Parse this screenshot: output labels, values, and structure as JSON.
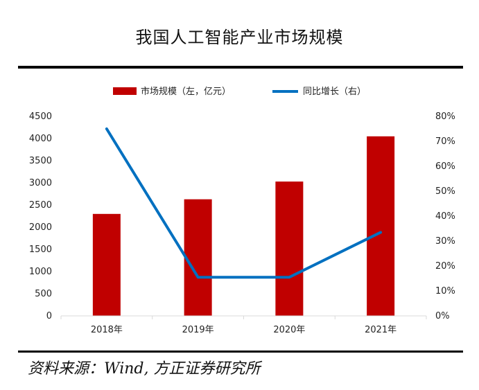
{
  "header": {
    "title": "我国人工智能产业市场规模"
  },
  "footer": {
    "source": "资料来源：Wind, 方正证券研究所"
  },
  "colors": {
    "bar": "#c00000",
    "line": "#0070c0"
  },
  "chart_data": {
    "type": "bar",
    "categories": [
      "2018年",
      "2019年",
      "2020年",
      "2021年"
    ],
    "series": [
      {
        "name": "市场规模（左，亿元）",
        "type": "bar",
        "axis": "left",
        "values": [
          2300,
          2630,
          3030,
          4050
        ]
      },
      {
        "name": "同比增长（右）",
        "type": "line",
        "axis": "right",
        "values": [
          75,
          15.5,
          15.5,
          33.5
        ]
      }
    ],
    "y_left": {
      "min": 0,
      "max": 4500,
      "ticks": [
        "0",
        "500",
        "1000",
        "1500",
        "2000",
        "2500",
        "3000",
        "3500",
        "4000",
        "4500"
      ]
    },
    "y_right": {
      "min": 0,
      "max": 80,
      "ticks": [
        "0%",
        "10%",
        "20%",
        "30%",
        "40%",
        "50%",
        "60%",
        "70%",
        "80%"
      ]
    },
    "legend_position": "top-center",
    "grid": false
  }
}
